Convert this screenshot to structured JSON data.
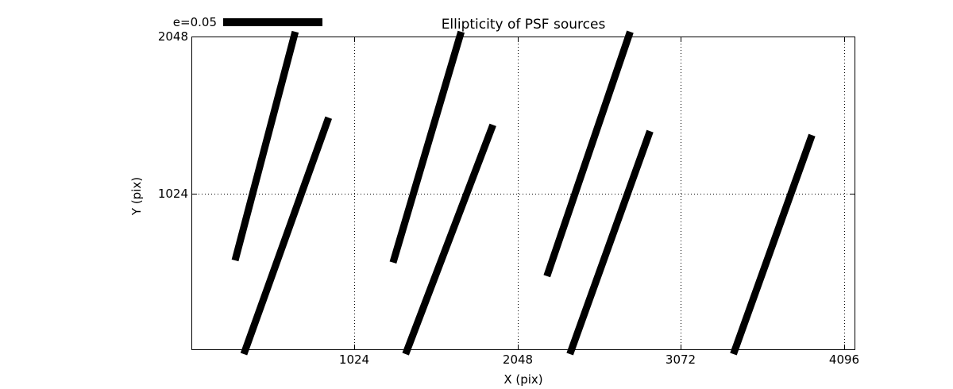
{
  "chart_data": {
    "type": "scatter",
    "subtype": "ellipticity-whisker-segments",
    "title": "Ellipticity of PSF sources",
    "xlabel": "X (pix)",
    "ylabel": "Y (pix)",
    "xlim": [
      0,
      4166
    ],
    "ylim": [
      0,
      2048
    ],
    "grid": "dotted",
    "line_color": "#000000",
    "background_color": "#ffffff",
    "xticks": [
      {
        "value": 1024,
        "label": "1024"
      },
      {
        "value": 2048,
        "label": "2048"
      },
      {
        "value": 3072,
        "label": "3072"
      },
      {
        "value": 4096,
        "label": "4096"
      }
    ],
    "yticks": [
      {
        "value": 1024,
        "label": "1024"
      },
      {
        "value": 2048,
        "label": "2048"
      }
    ],
    "legend": {
      "label": "e=0.05",
      "position": "above-axes-upper-left",
      "frame": false
    },
    "segments": [
      {
        "x1": 274,
        "y1": 586,
        "x2": 652,
        "y2": 2079
      },
      {
        "x1": 861,
        "y1": 1518,
        "x2": 329,
        "y2": -26
      },
      {
        "x1": 1265,
        "y1": 572,
        "x2": 1693,
        "y2": 2079
      },
      {
        "x1": 1892,
        "y1": 1471,
        "x2": 1344,
        "y2": -26
      },
      {
        "x1": 2231,
        "y1": 483,
        "x2": 2753,
        "y2": 2079
      },
      {
        "x1": 2878,
        "y1": 1430,
        "x2": 2375,
        "y2": -26
      },
      {
        "x1": 3894,
        "y1": 1404,
        "x2": 3401,
        "y2": -26
      }
    ]
  }
}
